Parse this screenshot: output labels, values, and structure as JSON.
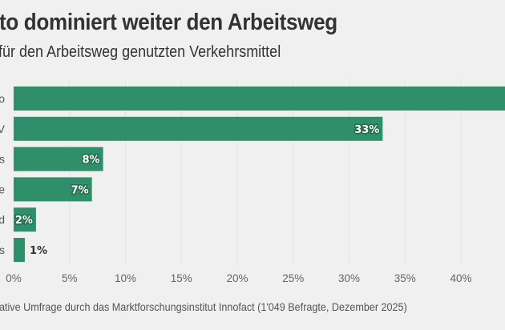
{
  "chart_data": {
    "type": "bar",
    "orientation": "horizontal",
    "title": "to dominiert weiter den Arbeitsweg",
    "subtitle": "für den Arbeitsweg genutzten Verkehrsmittel",
    "source": "ative Umfrage durch das Marktforschungsinstitut Innofact (1'049 Befragte, Dezember 2025)",
    "categories": [
      "o",
      "V",
      "s",
      "e",
      "d",
      "s"
    ],
    "values": [
      46,
      33,
      8,
      7,
      2,
      1
    ],
    "value_labels": [
      "",
      "33%",
      "8%",
      "7%",
      "2%",
      "1%"
    ],
    "value_note": "first bar extends beyond visible area; its value label is not visible",
    "xlabel": "",
    "ylabel": "",
    "xlim": [
      0,
      44
    ],
    "ticks": [
      0,
      5,
      10,
      15,
      20,
      25,
      30,
      35,
      40
    ],
    "tick_labels": [
      "0%",
      "5%",
      "10%",
      "15%",
      "20%",
      "25%",
      "30%",
      "35%",
      "40%"
    ],
    "grid": true,
    "legend": "none",
    "bar_color": "#2e8f6a",
    "label_halo_color": "#1f6a4d",
    "background_color": "#f0f0f0"
  }
}
